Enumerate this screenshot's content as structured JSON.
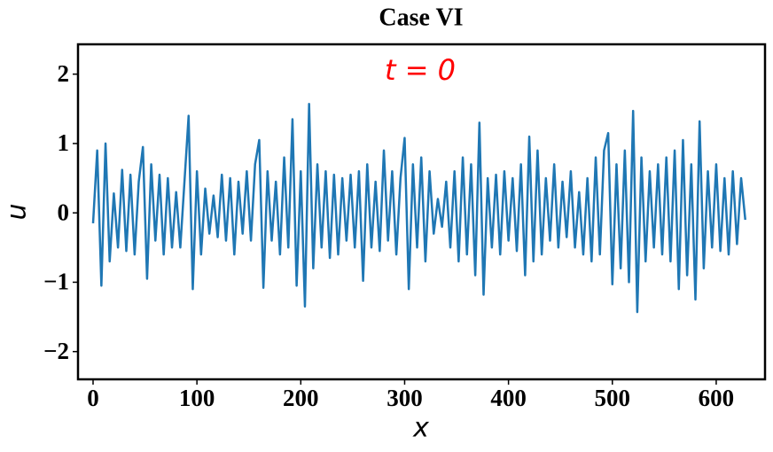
{
  "chart_data": {
    "type": "line",
    "title": "Case VI",
    "xlabel": "x",
    "ylabel": "u",
    "annotation": {
      "text": "t = 0",
      "color": "#ff0000"
    },
    "xlim": [
      -14.5,
      647
    ],
    "ylim": [
      -2.4,
      2.43
    ],
    "xticks": [
      0,
      100,
      200,
      300,
      400,
      500,
      600
    ],
    "yticks": [
      {
        "value": -2,
        "label": "−2"
      },
      {
        "value": -1,
        "label": "−1"
      },
      0,
      1,
      2
    ],
    "grid": false,
    "x": [
      0,
      4,
      8,
      12,
      16,
      20,
      24,
      28,
      32,
      36,
      40,
      44,
      48,
      52,
      56,
      60,
      64,
      68,
      72,
      76,
      80,
      84,
      88,
      92,
      96,
      100,
      104,
      108,
      112,
      116,
      120,
      124,
      128,
      132,
      136,
      140,
      144,
      148,
      152,
      156,
      160,
      164,
      168,
      172,
      176,
      180,
      184,
      188,
      192,
      196,
      200,
      204,
      208,
      212,
      216,
      220,
      224,
      228,
      232,
      236,
      240,
      244,
      248,
      252,
      256,
      260,
      264,
      268,
      272,
      276,
      280,
      284,
      288,
      292,
      296,
      300,
      304,
      308,
      312,
      316,
      320,
      324,
      328,
      332,
      336,
      340,
      344,
      348,
      352,
      356,
      360,
      364,
      368,
      372,
      376,
      380,
      384,
      388,
      392,
      396,
      400,
      404,
      408,
      412,
      416,
      420,
      424,
      428,
      432,
      436,
      440,
      444,
      448,
      452,
      456,
      460,
      464,
      468,
      472,
      476,
      480,
      484,
      488,
      492,
      496,
      500,
      504,
      508,
      512,
      516,
      520,
      524,
      528,
      532,
      536,
      540,
      544,
      548,
      552,
      556,
      560,
      564,
      568,
      572,
      576,
      580,
      584,
      588,
      592,
      596,
      600,
      604,
      608,
      612,
      616,
      620,
      624,
      628
    ],
    "series": [
      {
        "name": "u",
        "color": "#1f77b4",
        "values": [
          -0.15,
          0.9,
          -1.05,
          1.0,
          -0.7,
          0.28,
          -0.5,
          0.62,
          -0.55,
          0.55,
          -0.6,
          0.45,
          0.95,
          -0.95,
          0.7,
          -0.4,
          0.55,
          -0.6,
          0.5,
          -0.5,
          0.3,
          -0.5,
          0.45,
          1.4,
          -1.1,
          0.6,
          -0.6,
          0.35,
          -0.3,
          0.25,
          -0.35,
          0.55,
          -0.4,
          0.5,
          -0.6,
          0.45,
          -0.3,
          0.6,
          -0.4,
          0.7,
          1.05,
          -1.08,
          0.6,
          -0.4,
          0.45,
          -0.6,
          0.8,
          -0.5,
          1.35,
          -1.05,
          0.6,
          -1.35,
          1.57,
          -0.8,
          0.7,
          -0.5,
          0.6,
          -0.65,
          0.55,
          -0.6,
          0.5,
          -0.4,
          0.55,
          -0.5,
          0.6,
          -0.98,
          0.7,
          -0.5,
          0.45,
          -0.55,
          0.9,
          -0.4,
          0.6,
          -0.6,
          0.5,
          1.08,
          -1.1,
          0.7,
          -0.5,
          0.8,
          -0.7,
          0.6,
          -0.3,
          0.2,
          -0.2,
          0.45,
          -0.5,
          0.6,
          -0.7,
          0.8,
          -0.6,
          0.7,
          -0.9,
          1.3,
          -1.18,
          0.5,
          -0.5,
          0.55,
          -0.6,
          0.6,
          -0.4,
          0.5,
          -0.55,
          0.7,
          -0.9,
          1.1,
          -0.7,
          0.9,
          -0.6,
          0.5,
          -0.4,
          0.7,
          -0.5,
          0.45,
          -0.35,
          0.6,
          -0.5,
          0.3,
          -0.6,
          0.5,
          -0.7,
          0.8,
          -0.6,
          0.9,
          1.15,
          -1.03,
          0.7,
          -0.8,
          0.9,
          -1.0,
          1.47,
          -1.43,
          0.8,
          -0.7,
          0.6,
          -0.5,
          0.7,
          -0.6,
          0.8,
          -0.7,
          0.9,
          -1.1,
          1.05,
          -0.9,
          0.7,
          -1.25,
          1.32,
          -0.8,
          0.6,
          -0.5,
          0.7,
          -0.55,
          0.5,
          -0.6,
          0.6,
          -0.45,
          0.5,
          -0.1
        ]
      }
    ]
  }
}
